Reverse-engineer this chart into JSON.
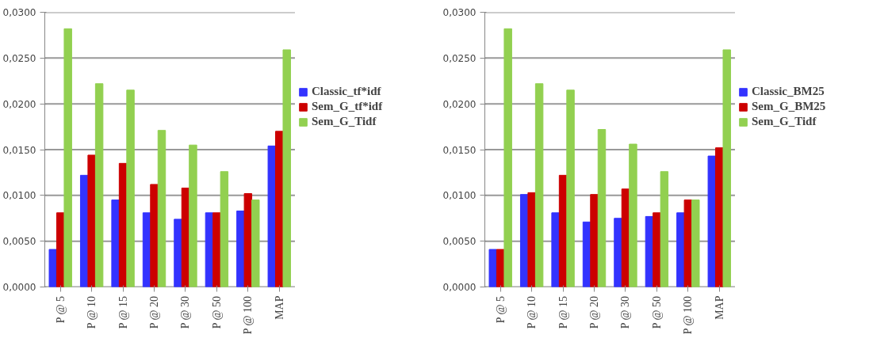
{
  "chart_data": [
    {
      "type": "bar",
      "categories": [
        "P @ 5",
        "P @ 10",
        "P @ 15",
        "P @ 20",
        "P @ 30",
        "P @ 50",
        "P @ 100",
        "MAP"
      ],
      "series": [
        {
          "name": "Classic_tf*idf",
          "color": "#3333ff",
          "values": [
            0.0041,
            0.0122,
            0.0095,
            0.0081,
            0.0074,
            0.0081,
            0.0083,
            0.0154
          ]
        },
        {
          "name": "Sem_G_tf*idf",
          "color": "#cc0000",
          "values": [
            0.0081,
            0.0144,
            0.0135,
            0.0112,
            0.0108,
            0.0081,
            0.0102,
            0.017
          ]
        },
        {
          "name": "Sem_G_Tidf",
          "color": "#92d050",
          "values": [
            0.0282,
            0.0222,
            0.0215,
            0.0171,
            0.0155,
            0.0126,
            0.0095,
            0.0259
          ]
        }
      ],
      "ylim": [
        0,
        0.03
      ],
      "yticks": [
        {
          "value": 0,
          "label": "0,0000"
        },
        {
          "value": 0.005,
          "label": "0,0050"
        },
        {
          "value": 0.01,
          "label": "0,0100"
        },
        {
          "value": 0.015,
          "label": "0,0150"
        },
        {
          "value": 0.02,
          "label": "0,0200"
        },
        {
          "value": 0.025,
          "label": "0,0250"
        },
        {
          "value": 0.03,
          "label": "0,0300"
        }
      ],
      "grid": "y",
      "legend": "right"
    },
    {
      "type": "bar",
      "categories": [
        "P @ 5",
        "P @ 10",
        "P @ 15",
        "P @ 20",
        "P @ 30",
        "P @ 50",
        "P @ 100",
        "MAP"
      ],
      "series": [
        {
          "name": "Classic_BM25",
          "color": "#3333ff",
          "values": [
            0.0041,
            0.0101,
            0.0081,
            0.0071,
            0.0075,
            0.0077,
            0.0081,
            0.0143
          ]
        },
        {
          "name": "Sem_G_BM25",
          "color": "#cc0000",
          "values": [
            0.0041,
            0.0103,
            0.0122,
            0.0101,
            0.0107,
            0.0081,
            0.0095,
            0.0152
          ]
        },
        {
          "name": "Sem_G_Tidf",
          "color": "#92d050",
          "values": [
            0.0282,
            0.0222,
            0.0215,
            0.0172,
            0.0156,
            0.0126,
            0.0095,
            0.0259
          ]
        }
      ],
      "ylim": [
        0,
        0.03
      ],
      "yticks": [
        {
          "value": 0,
          "label": "0,0000"
        },
        {
          "value": 0.005,
          "label": "0,0050"
        },
        {
          "value": 0.01,
          "label": "0,0100"
        },
        {
          "value": 0.015,
          "label": "0,0150"
        },
        {
          "value": 0.02,
          "label": "0,0200"
        },
        {
          "value": 0.025,
          "label": "0,0250"
        },
        {
          "value": 0.03,
          "label": "0,0300"
        }
      ],
      "grid": "y",
      "legend": "right"
    }
  ]
}
